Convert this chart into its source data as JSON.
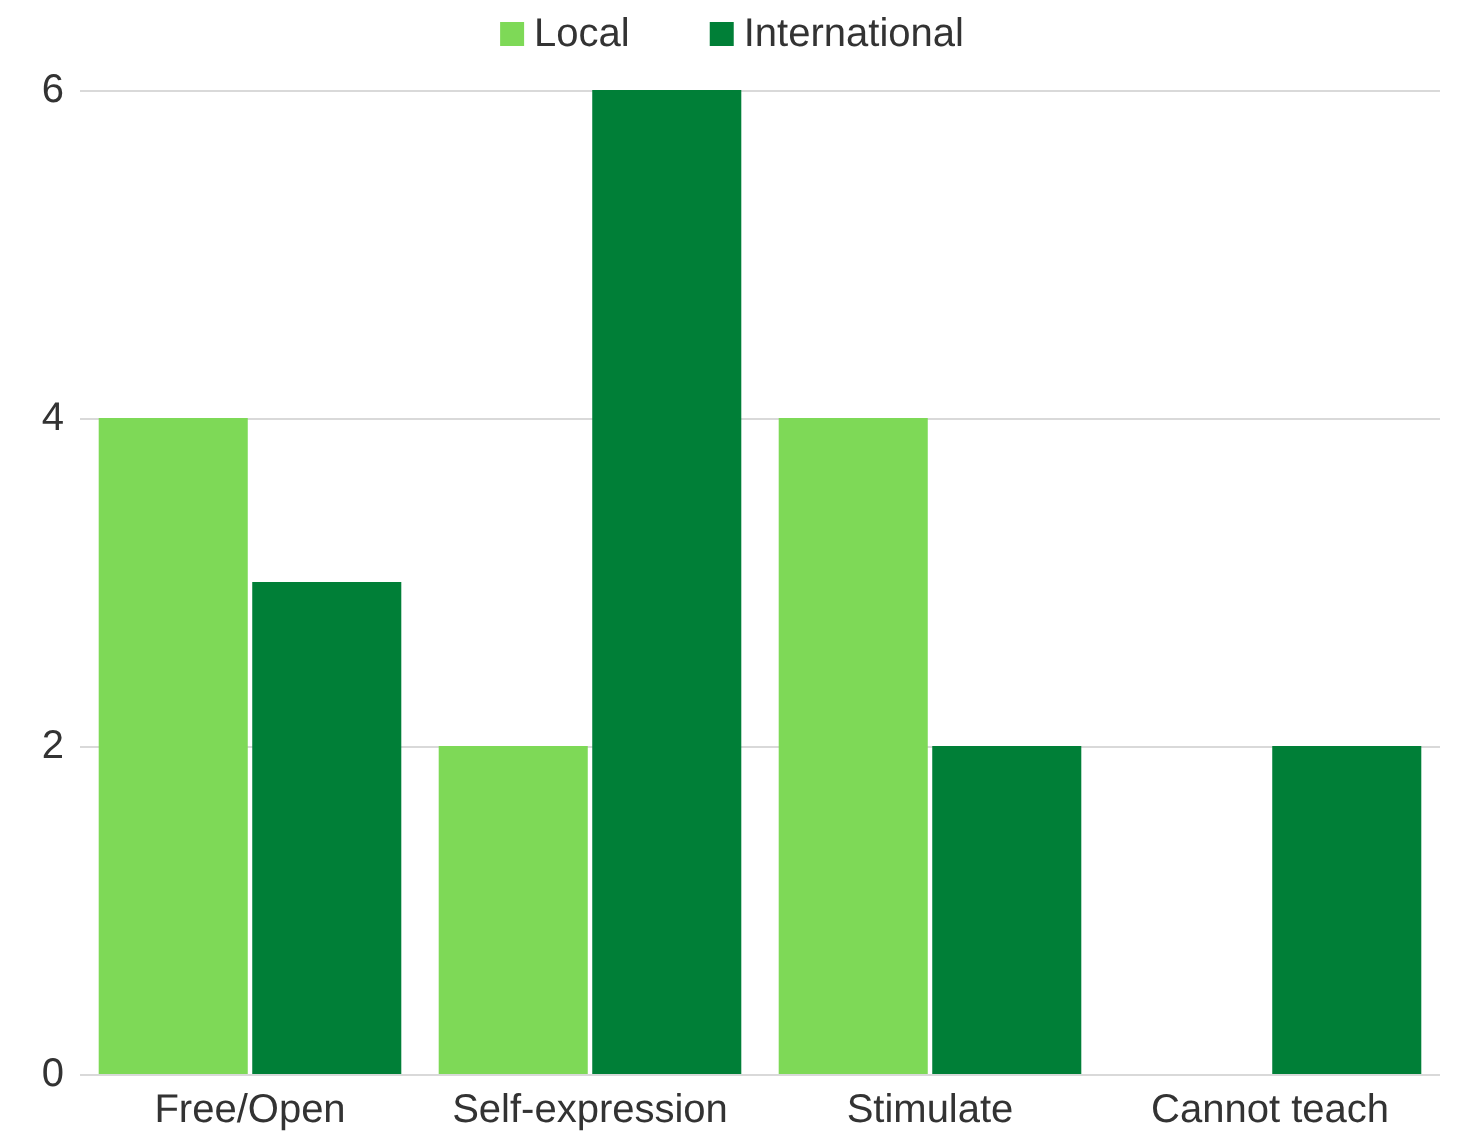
{
  "chart_data": {
    "type": "bar",
    "categories": [
      "Free/Open",
      "Self-expression",
      "Stimulate",
      "Cannot teach"
    ],
    "series": [
      {
        "name": "Local",
        "color": "#7ed957",
        "values": [
          4,
          2,
          4,
          0
        ]
      },
      {
        "name": "International",
        "color": "#007f37",
        "values": [
          3,
          6,
          2,
          2
        ]
      }
    ],
    "ylim": [
      0,
      6
    ],
    "yticks": [
      0,
      2,
      4,
      6
    ],
    "grid": "y",
    "legend": "top"
  }
}
